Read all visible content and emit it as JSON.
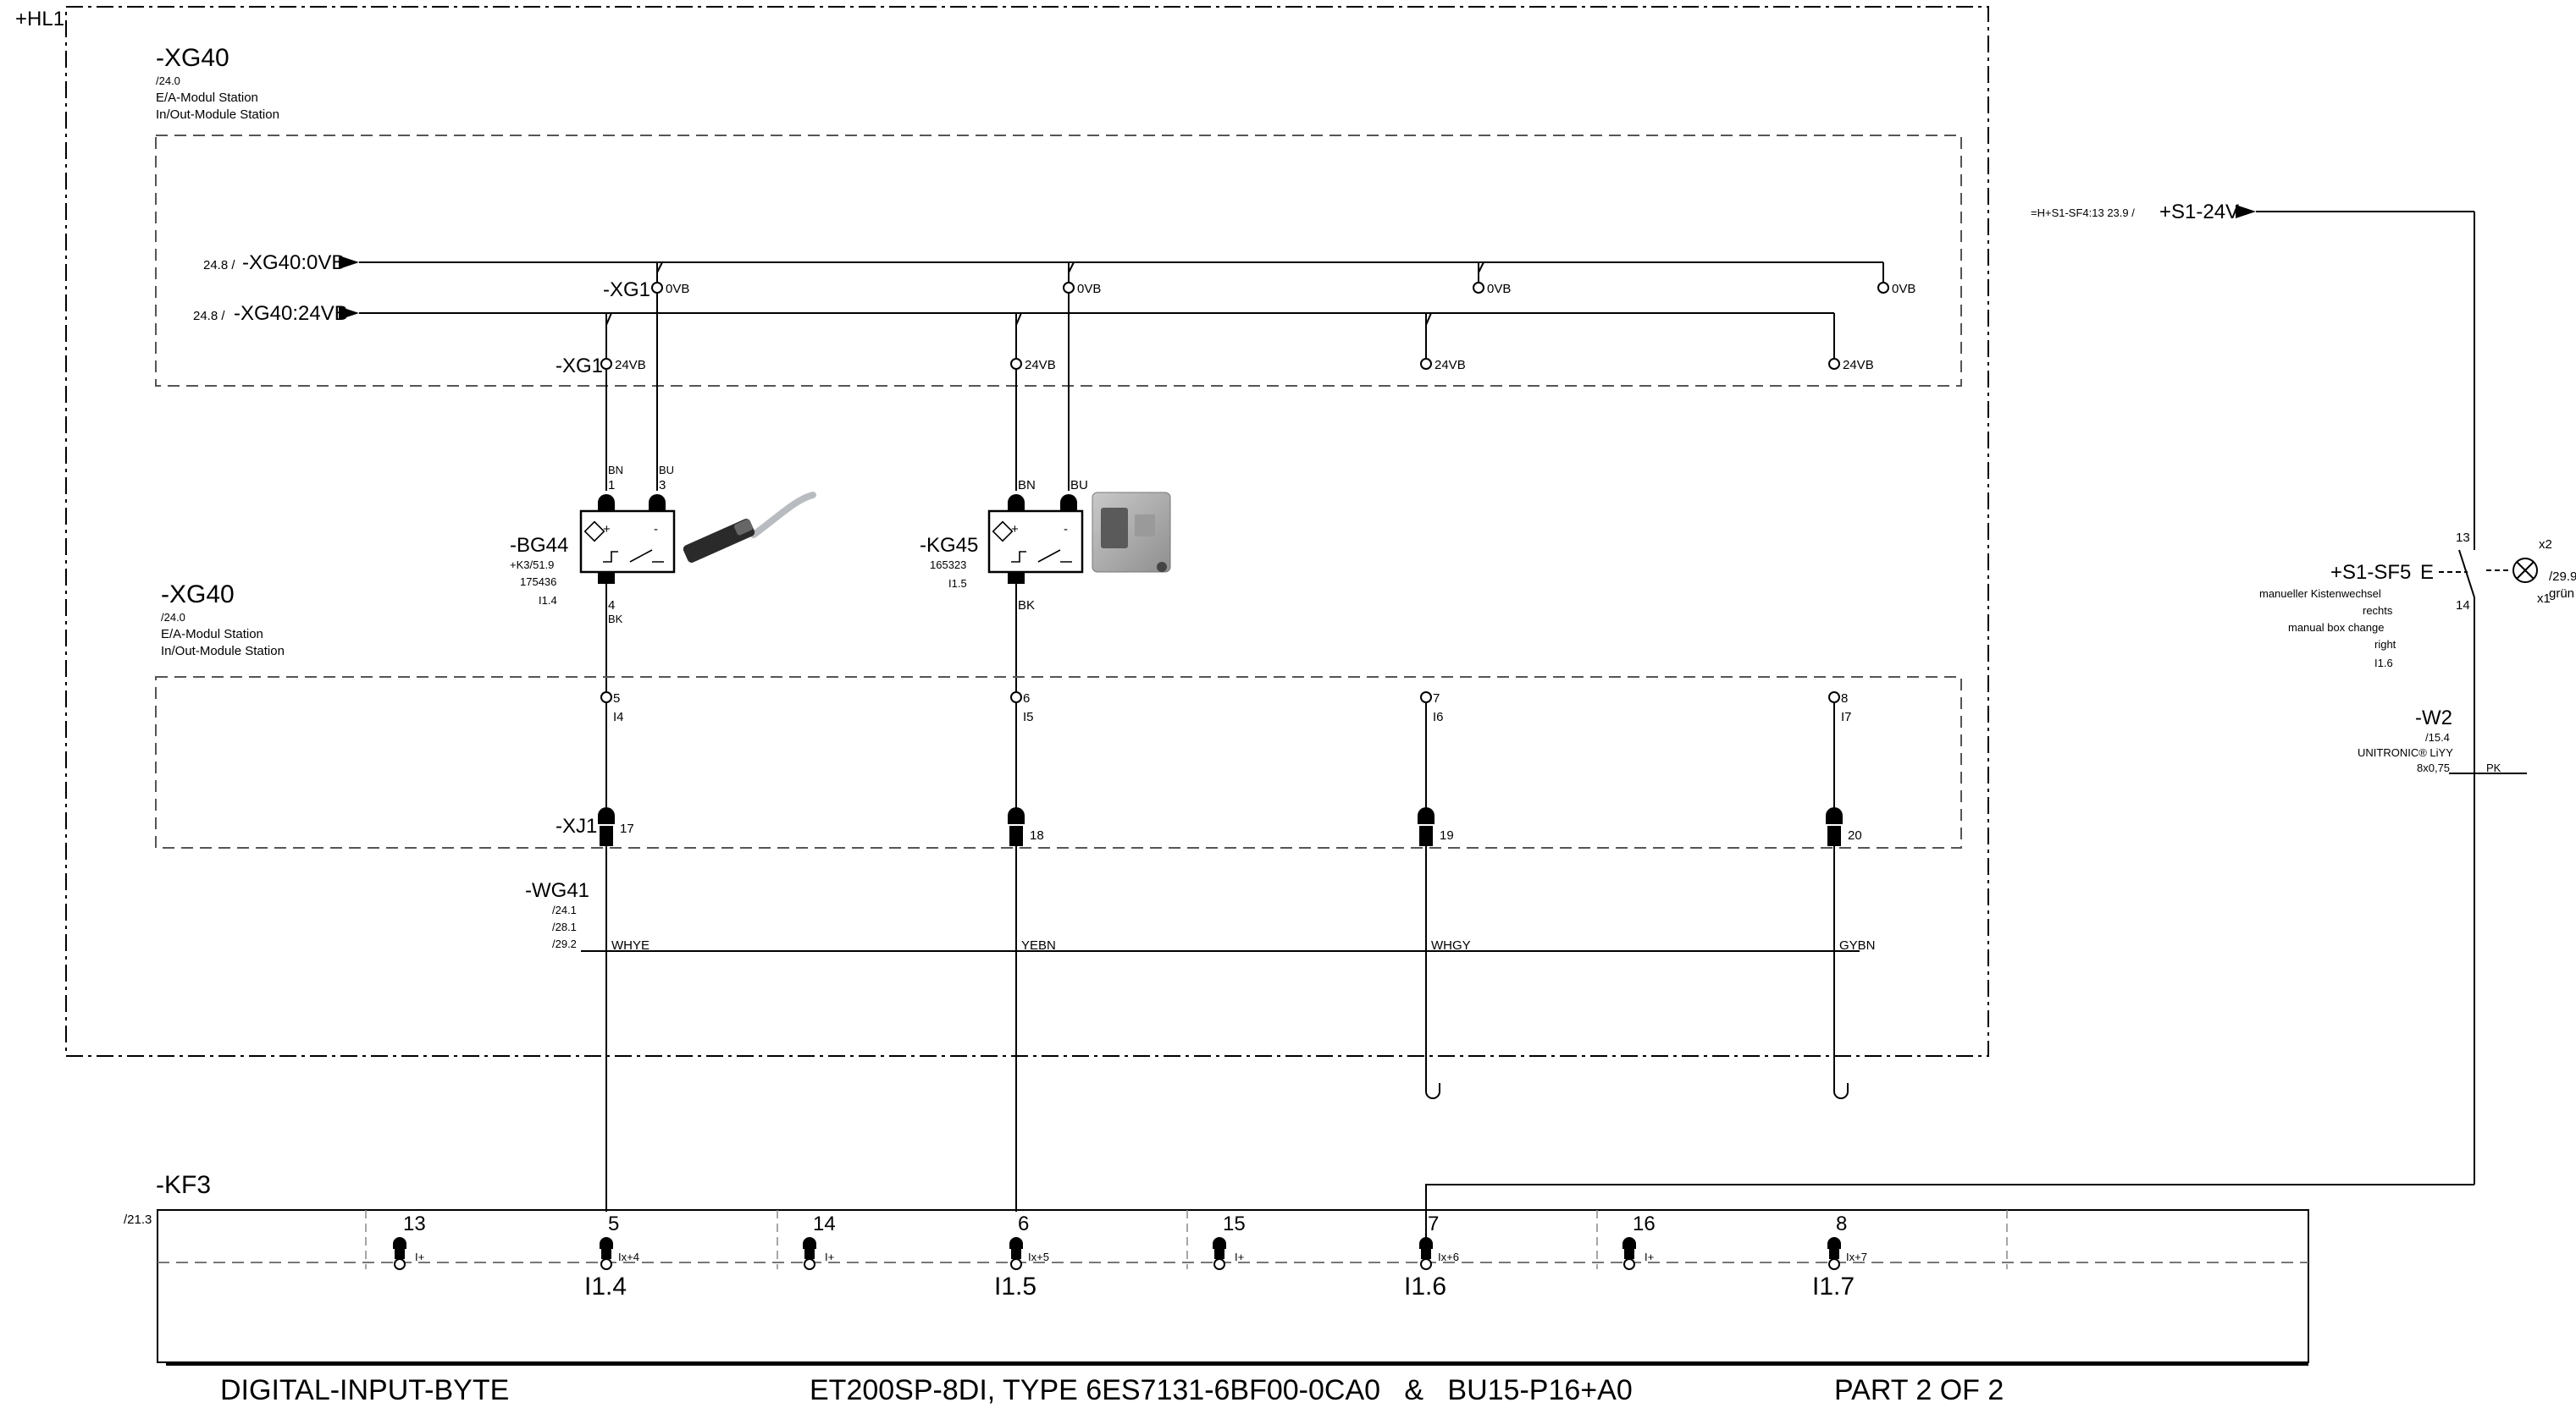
{
  "installation": "+HL1",
  "module_top": {
    "tag": "-XG40",
    "ref": "/24.0",
    "desc_de": "E/A-Modul Station",
    "desc_en": "In/Out-Module Station"
  },
  "module_mid": {
    "tag": "-XG40",
    "ref": "/24.0",
    "desc_de": "E/A-Modul Station",
    "desc_en": "In/Out-Module Station"
  },
  "bus_0vb": {
    "ref": "24.8 /",
    "name": "-XG40:0VB"
  },
  "bus_24vb": {
    "ref": "24.8 /",
    "name": "-XG40:24VB"
  },
  "xg1_tag": "-XG1",
  "terminals_0vb": [
    "0VB",
    "0VB",
    "0VB",
    "0VB"
  ],
  "terminals_24vb": [
    "24VB",
    "24VB",
    "24VB",
    "24VB"
  ],
  "sensor1": {
    "tag": "-BG44",
    "ref": "+K3/51.9",
    "part": "175436",
    "io": "I1.4",
    "pin_left": "1",
    "pin_right": "3",
    "pin_out": "4",
    "color_left": "BN",
    "color_right": "BU",
    "color_out": "BK",
    "plus": "+",
    "minus": "-"
  },
  "sensor2": {
    "tag": "-KG45",
    "part": "165323",
    "io": "I1.5",
    "color_left": "BN",
    "color_right": "BU",
    "color_out": "BK",
    "plus": "+",
    "minus": "-"
  },
  "inputs": [
    {
      "num": "5",
      "name": "I4"
    },
    {
      "num": "6",
      "name": "I5"
    },
    {
      "num": "7",
      "name": "I6"
    },
    {
      "num": "8",
      "name": "I7"
    }
  ],
  "xj1": {
    "tag": "-XJ1",
    "pins": [
      "17",
      "18",
      "19",
      "20"
    ]
  },
  "cable": {
    "tag": "-WG41",
    "refs": [
      "/24.1",
      "/28.1",
      "/29.2"
    ],
    "cores": [
      "WHYE",
      "YEBN",
      "WHGY",
      "GYBN"
    ]
  },
  "supply": {
    "ref": "=H+S1-SF4:13 23.9 /",
    "name": "+S1-24V"
  },
  "switch": {
    "tag": "+S1-SF5",
    "lines": [
      "manueller Kistenwechsel",
      "rechts",
      "manual box change",
      "right",
      "I1.6"
    ],
    "letter": "E",
    "pin_top": "13",
    "pin_bot": "14",
    "lamp_x2": "x2",
    "lamp_x1": "x1",
    "lamp_ref": "/29.9",
    "lamp_color": "grün"
  },
  "w2": {
    "tag": "-W2",
    "ref": "/15.4",
    "type": "UNITRONIC® LiYY",
    "size": "8x0,75",
    "core": "PK"
  },
  "kf3": {
    "tag": "-KF3",
    "ref": "/21.3",
    "left_pins": [
      "13",
      "14",
      "15",
      "16"
    ],
    "right_pins": [
      "5",
      "6",
      "7",
      "8"
    ],
    "left_small": [
      "I+",
      "I+",
      "I+",
      "I+"
    ],
    "right_small": [
      "Ix+4",
      "Ix+5",
      "Ix+6",
      "Ix+7"
    ],
    "addresses": [
      "I1.4",
      "I1.5",
      "I1.6",
      "I1.7"
    ]
  },
  "title_block": {
    "left": "DIGITAL-INPUT-BYTE",
    "center": "ET200SP-8DI, TYPE 6ES7131-6BF00-0CA0   &   BU15-P16+A0",
    "right": "PART 2 OF 2"
  }
}
